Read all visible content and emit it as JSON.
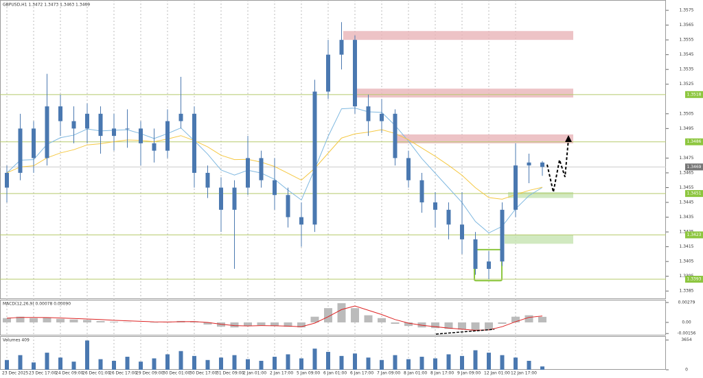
{
  "chart_data": {
    "type": "candlestick",
    "title": "GBPUSD,H1  1.3472 1.3473 1.3463 1.3469",
    "categories": [
      "23 Dec 2025",
      null,
      "23 Dec 17:00",
      null,
      "24 Dec 09:00",
      null,
      "26 Dec 01:00",
      null,
      "26 Dec 17:00",
      null,
      "29 Dec 09:00",
      null,
      "30 Dec 01:00",
      null,
      "30 Dec 17:00",
      null,
      "31 Dec 09:00",
      null,
      "2 Jan 01:00",
      null,
      "2 Jan 17:00",
      null,
      "5 Jan 09:00",
      null,
      "6 Jan 01:00",
      null,
      "6 Jan 17:00",
      null,
      "7 Jan 09:00",
      null,
      "8 Jan 01:00",
      null,
      "8 Jan 17:00",
      null,
      "9 Jan 09:00",
      null,
      "12 Jan 01:00",
      null,
      "12 Jan 17:00",
      null,
      null
    ],
    "open": [
      1.3455,
      1.3465,
      1.3495,
      1.3475,
      1.351,
      1.35,
      1.3495,
      1.3505,
      1.349,
      1.3495,
      1.3495,
      1.3485,
      1.348,
      1.35,
      1.3505,
      1.3465,
      1.3455,
      1.344,
      1.3455,
      1.3475,
      1.346,
      1.345,
      1.3435,
      1.343,
      1.352,
      1.3545,
      1.3555,
      1.351,
      1.35,
      1.3505,
      1.3475,
      1.346,
      1.3445,
      1.344,
      1.343,
      1.342,
      1.34,
      1.3405,
      1.344,
      1.347,
      1.3472
    ],
    "high": [
      1.347,
      1.3505,
      1.35,
      1.3532,
      1.3518,
      1.351,
      1.3512,
      1.351,
      1.3505,
      1.3508,
      1.35,
      1.3495,
      1.3508,
      1.353,
      1.351,
      1.347,
      1.3462,
      1.346,
      1.349,
      1.348,
      1.3475,
      1.3455,
      1.3445,
      1.3528,
      1.3555,
      1.3567,
      1.3558,
      1.3518,
      1.3515,
      1.3508,
      1.348,
      1.3465,
      1.3452,
      1.3445,
      1.3452,
      1.3425,
      1.3412,
      1.3445,
      1.3485,
      1.3478,
      1.3473
    ],
    "low": [
      1.3445,
      1.346,
      1.3465,
      1.347,
      1.349,
      1.3485,
      1.3485,
      1.3478,
      1.348,
      1.3482,
      1.347,
      1.3472,
      1.3475,
      1.3495,
      1.3455,
      1.3448,
      1.3425,
      1.34,
      1.345,
      1.3455,
      1.344,
      1.3428,
      1.3415,
      1.3425,
      1.3515,
      1.3535,
      1.3505,
      1.349,
      1.3492,
      1.347,
      1.3455,
      1.3438,
      1.3428,
      1.342,
      1.341,
      1.3396,
      1.3393,
      1.3402,
      1.3435,
      1.3458,
      1.3463
    ],
    "close": [
      1.3465,
      1.3495,
      1.3475,
      1.351,
      1.35,
      1.3495,
      1.3505,
      1.349,
      1.3495,
      1.3495,
      1.3485,
      1.348,
      1.35,
      1.3505,
      1.3465,
      1.3455,
      1.344,
      1.3455,
      1.3475,
      1.346,
      1.345,
      1.3435,
      1.343,
      1.352,
      1.3545,
      1.3555,
      1.351,
      1.35,
      1.3505,
      1.3475,
      1.346,
      1.3445,
      1.344,
      1.343,
      1.342,
      1.34,
      1.3405,
      1.344,
      1.347,
      1.3472,
      1.3469
    ],
    "color": "#4a78b0",
    "ylim": [
      1.338,
      1.3582
    ],
    "yticks": [
      1.3575,
      1.3565,
      1.3555,
      1.3545,
      1.3535,
      1.3525,
      1.3505,
      1.3495,
      1.3475,
      1.3465,
      1.3455,
      1.3445,
      1.3435,
      1.3425,
      1.3415,
      1.3405,
      1.3395,
      1.3385
    ],
    "levels": [
      {
        "value": 1.3518,
        "label": "1.3518"
      },
      {
        "value": 1.3486,
        "label": "1.3486"
      },
      {
        "value": 1.3451,
        "label": "1.3451"
      },
      {
        "value": 1.3423,
        "label": "1.3423"
      },
      {
        "value": 1.3393,
        "label": "1.3393"
      }
    ],
    "last_price": {
      "value": 1.3469,
      "label": "1.3469"
    },
    "resistance_zones": [
      [
        1.3561,
        1.3555
      ],
      [
        1.3522,
        1.3516
      ],
      [
        1.3491,
        1.3485
      ]
    ],
    "support_zones": [
      [
        1.3452,
        1.3448
      ],
      [
        1.3423,
        1.3417
      ]
    ],
    "highlight_box": [
      1.3413,
      1.3392
    ],
    "macd": {
      "label": "MACD(12,26,9) 0.00078 0.00090",
      "ylim": [
        -0.00183,
        0.00317
      ],
      "yticks": [
        0.00279,
        {
          "value": 0,
          "label": "0.00"
        },
        -0.00156
      ],
      "histogram": [
        0.0006,
        0.0008,
        0.0006,
        0.0007,
        0.0005,
        0.0004,
        0.00035,
        0.0002,
        0.0001,
        5e-05,
        0,
        -5e-05,
        5e-05,
        0.0002,
        0.00015,
        -0.0003,
        -0.0006,
        -0.0007,
        -0.0005,
        -0.0004,
        -0.0005,
        -0.0006,
        -0.0007,
        0.0008,
        0.002,
        0.0027,
        0.002,
        0.001,
        0.0006,
        -0.0002,
        -0.0005,
        -0.0007,
        -0.0008,
        -0.0009,
        -0.001,
        -0.0012,
        -0.001,
        -0.0002,
        0.0008,
        0.001,
        0.00078
      ],
      "signal": [
        0.0006,
        0.0007,
        0.0007,
        0.00068,
        0.00062,
        0.00055,
        0.00048,
        0.0004,
        0.0003,
        0.00022,
        0.00015,
        8e-05,
        6e-05,
        0.0001,
        0.00012,
        0,
        -0.00025,
        -0.00045,
        -0.0005,
        -0.00045,
        -0.00047,
        -0.00052,
        -0.0006,
        -0.0001,
        0.0008,
        0.0018,
        0.0023,
        0.0017,
        0.0011,
        0.0004,
        -0.0001,
        -0.0004,
        -0.0006,
        -0.0008,
        -0.00095,
        -0.0011,
        -0.00105,
        -0.0006,
        0.0001,
        0.0007,
        0.0009
      ]
    },
    "volume": {
      "label": "Volumes 409",
      "ylim": [
        0,
        4135
      ],
      "yticks": [
        3654,
        0
      ],
      "values": [
        1200,
        1800,
        900,
        2100,
        1500,
        1000,
        3600,
        1300,
        1100,
        1600,
        1000,
        1400,
        1900,
        2300,
        1700,
        1200,
        1500,
        1800,
        1300,
        1100,
        1600,
        1900,
        1400,
        2600,
        2200,
        1700,
        2000,
        1500,
        1200,
        1800,
        1300,
        1600,
        1400,
        1900,
        1700,
        2400,
        2100,
        1800,
        1500,
        1100,
        409
      ]
    }
  }
}
